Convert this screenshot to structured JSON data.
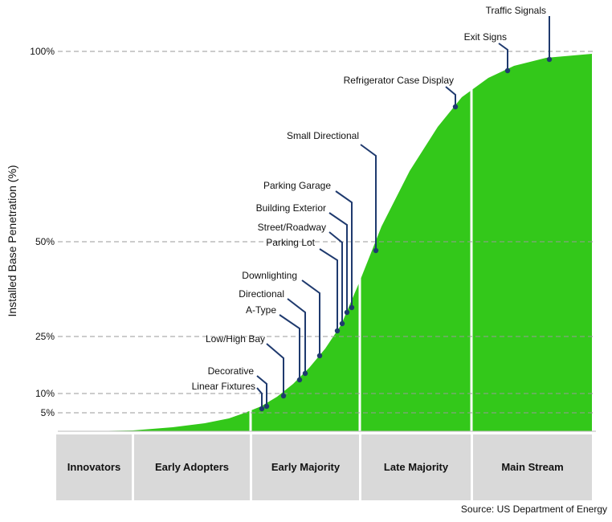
{
  "chart_data": {
    "type": "area",
    "ylabel": "Installed Base Penetration (%)",
    "y_ticks": [
      "5%",
      "10%",
      "25%",
      "50%",
      "100%"
    ],
    "y_tick_values": [
      5,
      10,
      25,
      50,
      100
    ],
    "ylim": [
      0,
      100
    ],
    "x_phases": [
      "Innovators",
      "Early Adopters",
      "Early Majority",
      "Late Majority",
      "Main Stream"
    ],
    "colors": {
      "area": "#33c81a",
      "panel": "#d9d9d9",
      "leader": "#1f3a6e",
      "grid": "#999999"
    },
    "grid": "dashed horizontal at tick values",
    "annotations": [
      {
        "label": "Linear Fixtures",
        "y": 5
      },
      {
        "label": "Decorative",
        "y": 6
      },
      {
        "label": "Low/High Bay",
        "y": 9
      },
      {
        "label": "A-Type",
        "y": 14
      },
      {
        "label": "Directional",
        "y": 15
      },
      {
        "label": "Downlighting",
        "y": 20
      },
      {
        "label": "Parking Lot",
        "y": 26
      },
      {
        "label": "Street/Roadway",
        "y": 28
      },
      {
        "label": "Building Exterior",
        "y": 31
      },
      {
        "label": "Parking Garage",
        "y": 33
      },
      {
        "label": "Small Directional",
        "y": 49
      },
      {
        "label": "Refrigerator Case Display",
        "y": 85
      },
      {
        "label": "Exit Signs",
        "y": 96
      },
      {
        "label": "Traffic Signals",
        "y": 99
      }
    ]
  },
  "source": "Source: US Department of Energy"
}
